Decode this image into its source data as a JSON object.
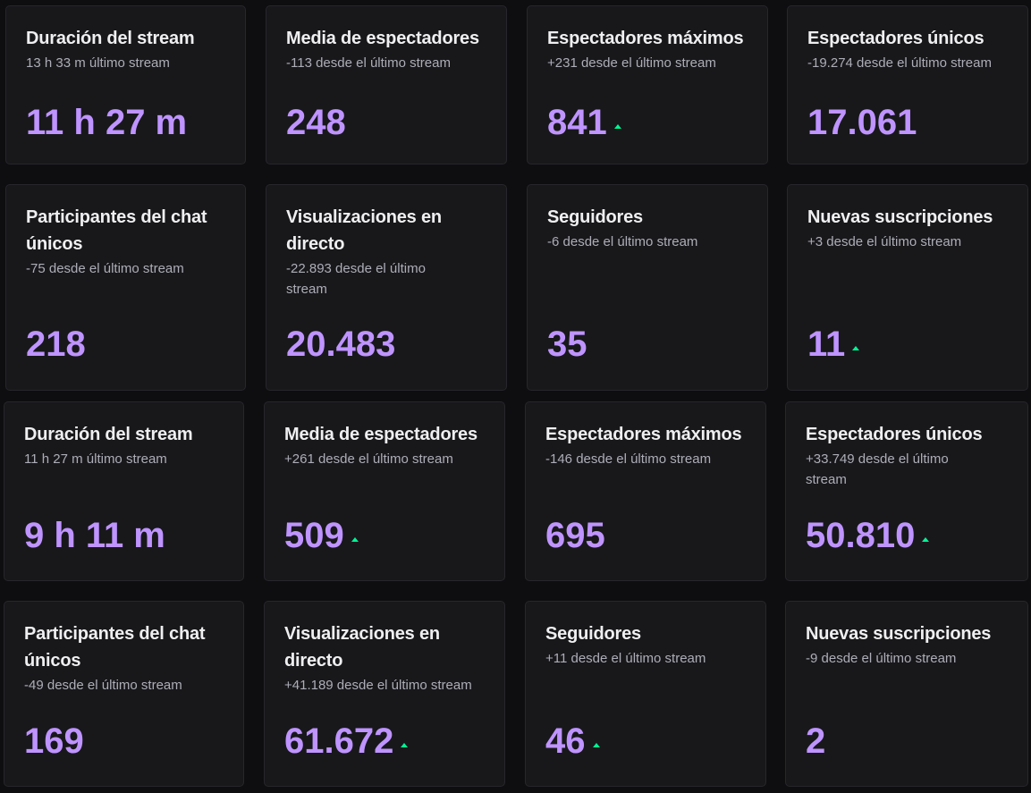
{
  "colors": {
    "background": "#0e0e10",
    "card_background": "#18181b",
    "title": "#efeff1",
    "delta": "#adadb8",
    "value": "#bf94ff",
    "trend_up": "#00f593"
  },
  "streams": [
    {
      "cards": [
        {
          "title": "Duración del stream",
          "delta": "13 h 33 m último stream",
          "value": "11 h 27 m",
          "trend": "none"
        },
        {
          "title": "Media de espectadores",
          "delta": "-113 desde el último stream",
          "value": "248",
          "trend": "none"
        },
        {
          "title": "Espectadores máximos",
          "delta": "+231 desde el último stream",
          "value": "841",
          "trend": "up"
        },
        {
          "title": "Espectadores únicos",
          "delta": "-19.274 desde el último stream",
          "value": "17.061",
          "trend": "none"
        },
        {
          "title": "Participantes del chat únicos",
          "delta": "-75 desde el último stream",
          "value": "218",
          "trend": "none"
        },
        {
          "title": "Visualizaciones en directo",
          "delta": "-22.893 desde el último stream",
          "value": "20.483",
          "trend": "none"
        },
        {
          "title": "Seguidores",
          "delta": "-6 desde el último stream",
          "value": "35",
          "trend": "none"
        },
        {
          "title": "Nuevas suscripciones",
          "delta": "+3 desde el último stream",
          "value": "11",
          "trend": "up"
        }
      ]
    },
    {
      "cards": [
        {
          "title": "Duración del stream",
          "delta": "11 h 27 m último stream",
          "value": "9 h 11 m",
          "trend": "none"
        },
        {
          "title": "Media de espectadores",
          "delta": "+261 desde el último stream",
          "value": "509",
          "trend": "up"
        },
        {
          "title": "Espectadores máximos",
          "delta": "-146 desde el último stream",
          "value": "695",
          "trend": "none"
        },
        {
          "title": "Espectadores únicos",
          "delta": "+33.749 desde el último stream",
          "value": "50.810",
          "trend": "up"
        },
        {
          "title": "Participantes del chat únicos",
          "delta": "-49 desde el último stream",
          "value": "169",
          "trend": "none"
        },
        {
          "title": "Visualizaciones en directo",
          "delta": "+41.189 desde el último stream",
          "value": "61.672",
          "trend": "up"
        },
        {
          "title": "Seguidores",
          "delta": "+11 desde el último stream",
          "value": "46",
          "trend": "up"
        },
        {
          "title": "Nuevas suscripciones",
          "delta": "-9 desde el último stream",
          "value": "2",
          "trend": "none"
        }
      ]
    }
  ]
}
